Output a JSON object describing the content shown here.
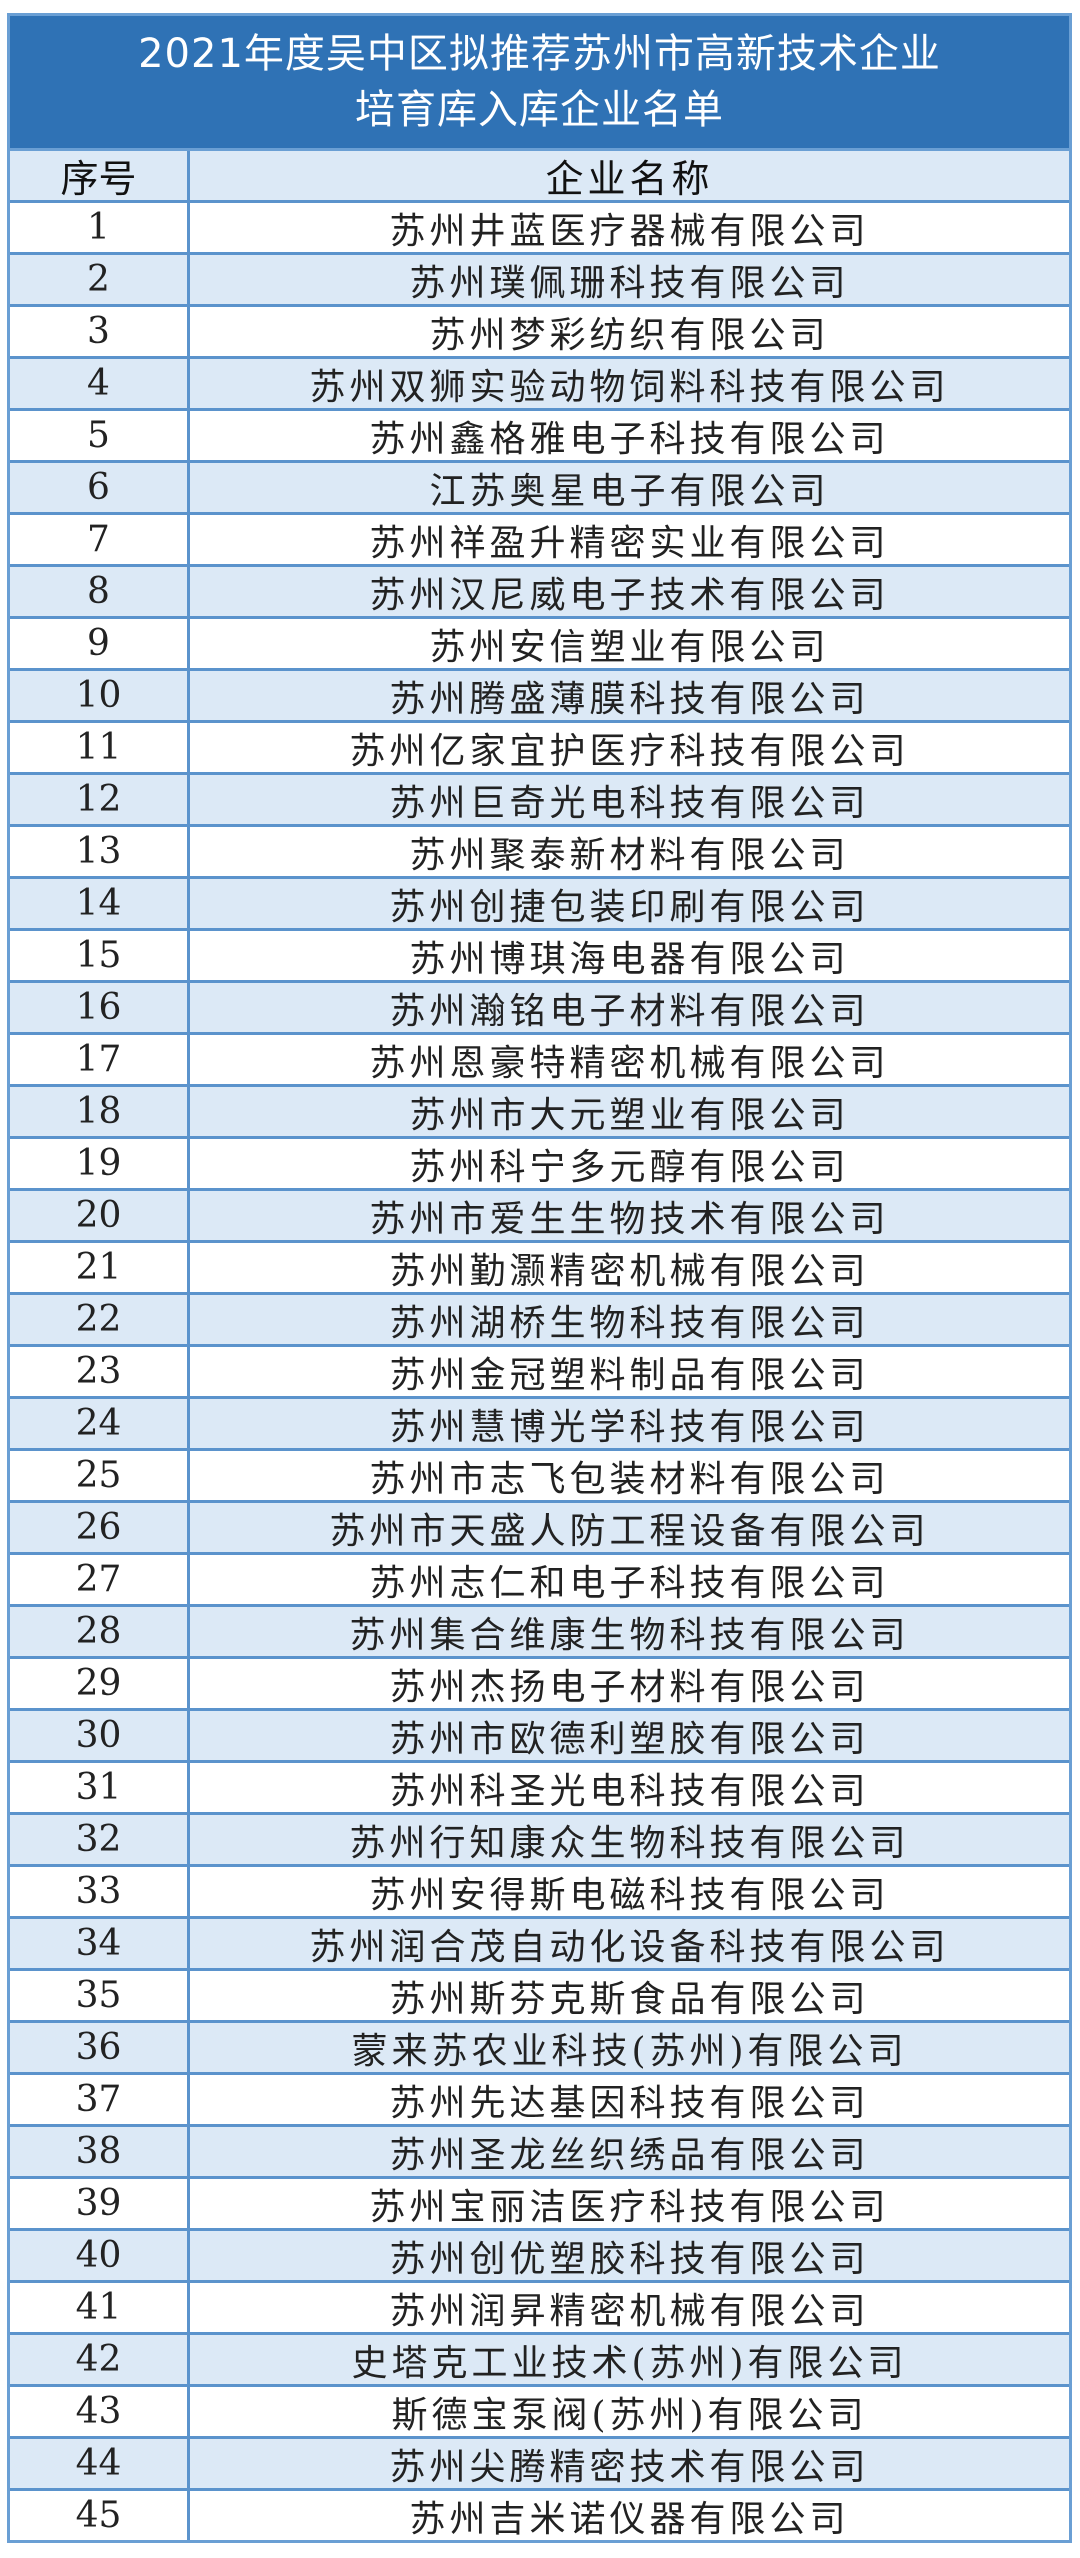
{
  "title": {
    "line1": "2021年度吴中区拟推荐苏州市高新技术企业",
    "line2": "培育库入库企业名单"
  },
  "columns": {
    "index": "序号",
    "name": "企业名称"
  },
  "colors": {
    "header_bg": "#2f72b5",
    "stripe": "#dce9f6",
    "border": "#5b93cc"
  },
  "rows": [
    {
      "no": "1",
      "name": "苏州井蓝医疗器械有限公司"
    },
    {
      "no": "2",
      "name": "苏州璞佩珊科技有限公司"
    },
    {
      "no": "3",
      "name": "苏州梦彩纺织有限公司"
    },
    {
      "no": "4",
      "name": "苏州双狮实验动物饲料科技有限公司"
    },
    {
      "no": "5",
      "name": "苏州鑫格雅电子科技有限公司"
    },
    {
      "no": "6",
      "name": "江苏奥星电子有限公司"
    },
    {
      "no": "7",
      "name": "苏州祥盈升精密实业有限公司"
    },
    {
      "no": "8",
      "name": "苏州汉尼威电子技术有限公司"
    },
    {
      "no": "9",
      "name": "苏州安信塑业有限公司"
    },
    {
      "no": "10",
      "name": "苏州腾盛薄膜科技有限公司"
    },
    {
      "no": "11",
      "name": "苏州亿家宜护医疗科技有限公司"
    },
    {
      "no": "12",
      "name": "苏州巨奇光电科技有限公司"
    },
    {
      "no": "13",
      "name": "苏州聚泰新材料有限公司"
    },
    {
      "no": "14",
      "name": "苏州创捷包装印刷有限公司"
    },
    {
      "no": "15",
      "name": "苏州博琪海电器有限公司"
    },
    {
      "no": "16",
      "name": "苏州瀚铭电子材料有限公司"
    },
    {
      "no": "17",
      "name": "苏州恩豪特精密机械有限公司"
    },
    {
      "no": "18",
      "name": "苏州市大元塑业有限公司"
    },
    {
      "no": "19",
      "name": "苏州科宁多元醇有限公司"
    },
    {
      "no": "20",
      "name": "苏州市爱生生物技术有限公司"
    },
    {
      "no": "21",
      "name": "苏州勤灏精密机械有限公司"
    },
    {
      "no": "22",
      "name": "苏州湖桥生物科技有限公司"
    },
    {
      "no": "23",
      "name": "苏州金冠塑料制品有限公司"
    },
    {
      "no": "24",
      "name": "苏州慧博光学科技有限公司"
    },
    {
      "no": "25",
      "name": "苏州市志飞包装材料有限公司"
    },
    {
      "no": "26",
      "name": "苏州市天盛人防工程设备有限公司"
    },
    {
      "no": "27",
      "name": "苏州志仁和电子科技有限公司"
    },
    {
      "no": "28",
      "name": "苏州集合维康生物科技有限公司"
    },
    {
      "no": "29",
      "name": "苏州杰扬电子材料有限公司"
    },
    {
      "no": "30",
      "name": "苏州市欧德利塑胶有限公司"
    },
    {
      "no": "31",
      "name": "苏州科圣光电科技有限公司"
    },
    {
      "no": "32",
      "name": "苏州行知康众生物科技有限公司"
    },
    {
      "no": "33",
      "name": "苏州安得斯电磁科技有限公司"
    },
    {
      "no": "34",
      "name": "苏州润合茂自动化设备科技有限公司"
    },
    {
      "no": "35",
      "name": "苏州斯芬克斯食品有限公司"
    },
    {
      "no": "36",
      "name": "蒙来苏农业科技(苏州)有限公司"
    },
    {
      "no": "37",
      "name": "苏州先达基因科技有限公司"
    },
    {
      "no": "38",
      "name": "苏州圣龙丝织绣品有限公司"
    },
    {
      "no": "39",
      "name": "苏州宝丽洁医疗科技有限公司"
    },
    {
      "no": "40",
      "name": "苏州创优塑胶科技有限公司"
    },
    {
      "no": "41",
      "name": "苏州润昇精密机械有限公司"
    },
    {
      "no": "42",
      "name": "史塔克工业技术(苏州)有限公司"
    },
    {
      "no": "43",
      "name": "斯德宝泵阀(苏州)有限公司"
    },
    {
      "no": "44",
      "name": "苏州尖腾精密技术有限公司"
    },
    {
      "no": "45",
      "name": "苏州吉米诺仪器有限公司"
    }
  ]
}
